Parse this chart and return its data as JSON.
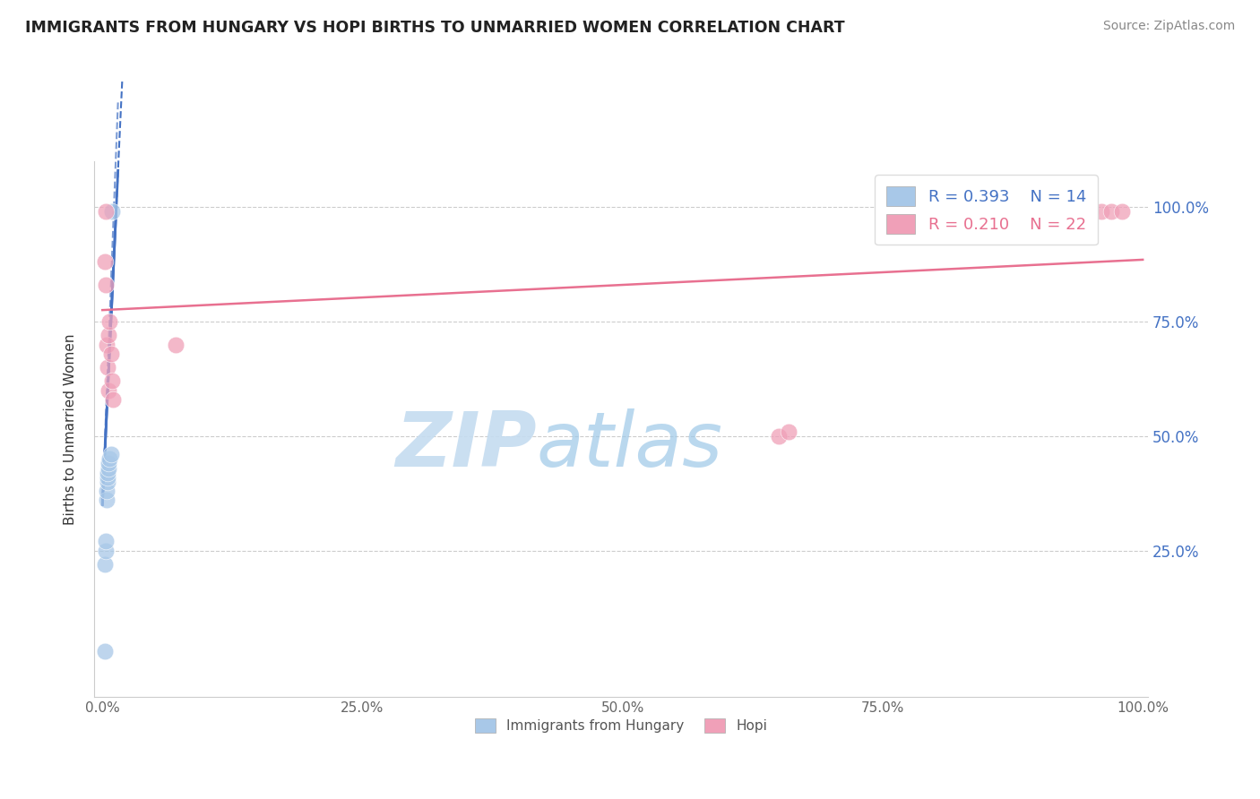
{
  "title": "IMMIGRANTS FROM HUNGARY VS HOPI BIRTHS TO UNMARRIED WOMEN CORRELATION CHART",
  "source": "Source: ZipAtlas.com",
  "ylabel": "Births to Unmarried Women",
  "blue_color": "#A8C8E8",
  "pink_color": "#F0A0B8",
  "blue_line_color": "#4472C4",
  "pink_line_color": "#E87090",
  "blue_R": 0.393,
  "blue_N": 14,
  "pink_R": 0.21,
  "pink_N": 22,
  "blue_scatter_x": [
    0.002,
    0.002,
    0.003,
    0.003,
    0.004,
    0.004,
    0.005,
    0.005,
    0.005,
    0.006,
    0.006,
    0.007,
    0.008,
    0.009
  ],
  "blue_scatter_y": [
    0.03,
    0.22,
    0.25,
    0.27,
    0.36,
    0.38,
    0.4,
    0.41,
    0.42,
    0.43,
    0.44,
    0.45,
    0.46,
    0.99
  ],
  "pink_scatter_x": [
    0.002,
    0.003,
    0.003,
    0.004,
    0.005,
    0.006,
    0.006,
    0.007,
    0.008,
    0.009,
    0.01,
    0.07,
    0.65,
    0.66,
    0.9,
    0.91,
    0.92,
    0.94,
    0.95,
    0.96,
    0.97,
    0.98
  ],
  "pink_scatter_y": [
    0.88,
    0.83,
    0.99,
    0.7,
    0.65,
    0.6,
    0.72,
    0.75,
    0.68,
    0.62,
    0.58,
    0.7,
    0.5,
    0.51,
    0.99,
    0.99,
    0.99,
    0.99,
    0.99,
    0.99,
    0.99,
    0.99
  ],
  "blue_trend_x0": 0.0,
  "blue_trend_y0": 0.35,
  "blue_trend_x1": 0.015,
  "blue_trend_y1": 1.08,
  "pink_trend_x0": 0.0,
  "pink_trend_y0": 0.775,
  "pink_trend_x1": 1.0,
  "pink_trend_y1": 0.885,
  "ytick_vals": [
    0.25,
    0.5,
    0.75,
    1.0
  ],
  "ytick_labels": [
    "25.0%",
    "50.0%",
    "75.0%",
    "100.0%"
  ],
  "xtick_vals": [
    0.0,
    0.25,
    0.5,
    0.75,
    1.0
  ],
  "xtick_labels": [
    "0.0%",
    "25.0%",
    "50.0%",
    "75.0%",
    "100.0%"
  ],
  "xlim": [
    -0.008,
    1.005
  ],
  "ylim": [
    -0.07,
    1.1
  ],
  "watermark_zip": "ZIP",
  "watermark_atlas": "atlas",
  "background_color": "#FFFFFF"
}
